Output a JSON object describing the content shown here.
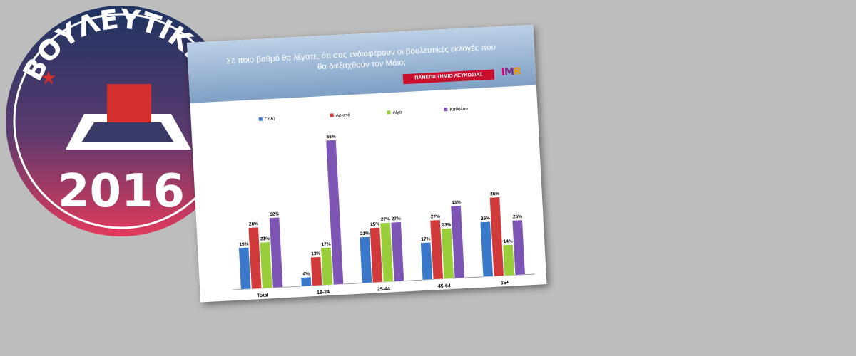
{
  "badge": {
    "title": "ΒΟΥΛΕΥΤΙΚΕΣ",
    "year": "2016",
    "colors": {
      "top": "#1f3461",
      "bottom": "#e23a5c",
      "ballot": "#d32f2f"
    }
  },
  "slide": {
    "title_line1": "Σε ποιο βαθμό θα λέγατε, ότι σας ενδιαφέρουν οι βουλευτικές εκλογές που",
    "title_line2": "θα διεξαχθούν τον Μάιο;",
    "university": "ΠΑΝΕΠΙΣΤΗΜΙΟ ΛΕΥΚΩΣΙΑΣ",
    "logo": {
      "i": "I",
      "m": "M",
      "r": "R"
    }
  },
  "chart_data": {
    "type": "bar",
    "categories": [
      "Total",
      "18-24",
      "25-44",
      "45-64",
      "65+"
    ],
    "series": [
      {
        "name": "Πολύ",
        "color": "#3a78c9",
        "values": [
          19,
          4,
          21,
          17,
          25
        ]
      },
      {
        "name": "Αρκετά",
        "color": "#d03a3a",
        "values": [
          28,
          13,
          25,
          27,
          36
        ]
      },
      {
        "name": "Λίγο",
        "color": "#9acd3a",
        "values": [
          21,
          17,
          27,
          23,
          14
        ]
      },
      {
        "name": "Καθόλου",
        "color": "#7d55b5",
        "values": [
          32,
          66,
          27,
          33,
          25
        ]
      }
    ],
    "value_format": "percent",
    "ylim": [
      0,
      70
    ],
    "legend_position": "top",
    "grid": false
  }
}
